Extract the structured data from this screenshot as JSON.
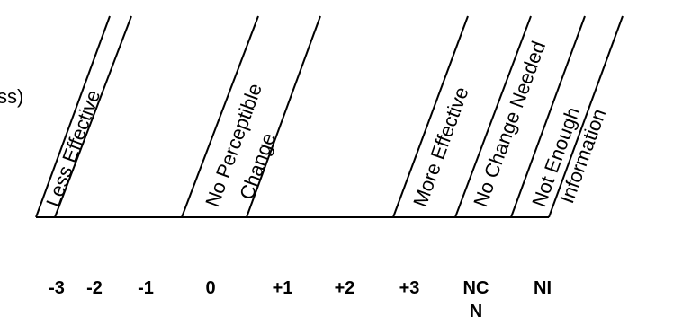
{
  "truncated_label": "ss)",
  "headers": {
    "less_effective": "Less Effective",
    "no_perceptible_line1": "No Perceptible",
    "no_perceptible_line2": "Change",
    "more_effective": "More Effective",
    "no_change_needed": "No Change Needed",
    "not_enough_line1": "Not Enough",
    "not_enough_line2": "Information"
  },
  "scores": {
    "m3": "-3",
    "m2": "-2",
    "m1": "-1",
    "zero": "0",
    "p1": "+1",
    "p2": "+2",
    "p3": "+3",
    "nc_line1": "NC",
    "nc_line2": "N",
    "ni": "NI"
  }
}
